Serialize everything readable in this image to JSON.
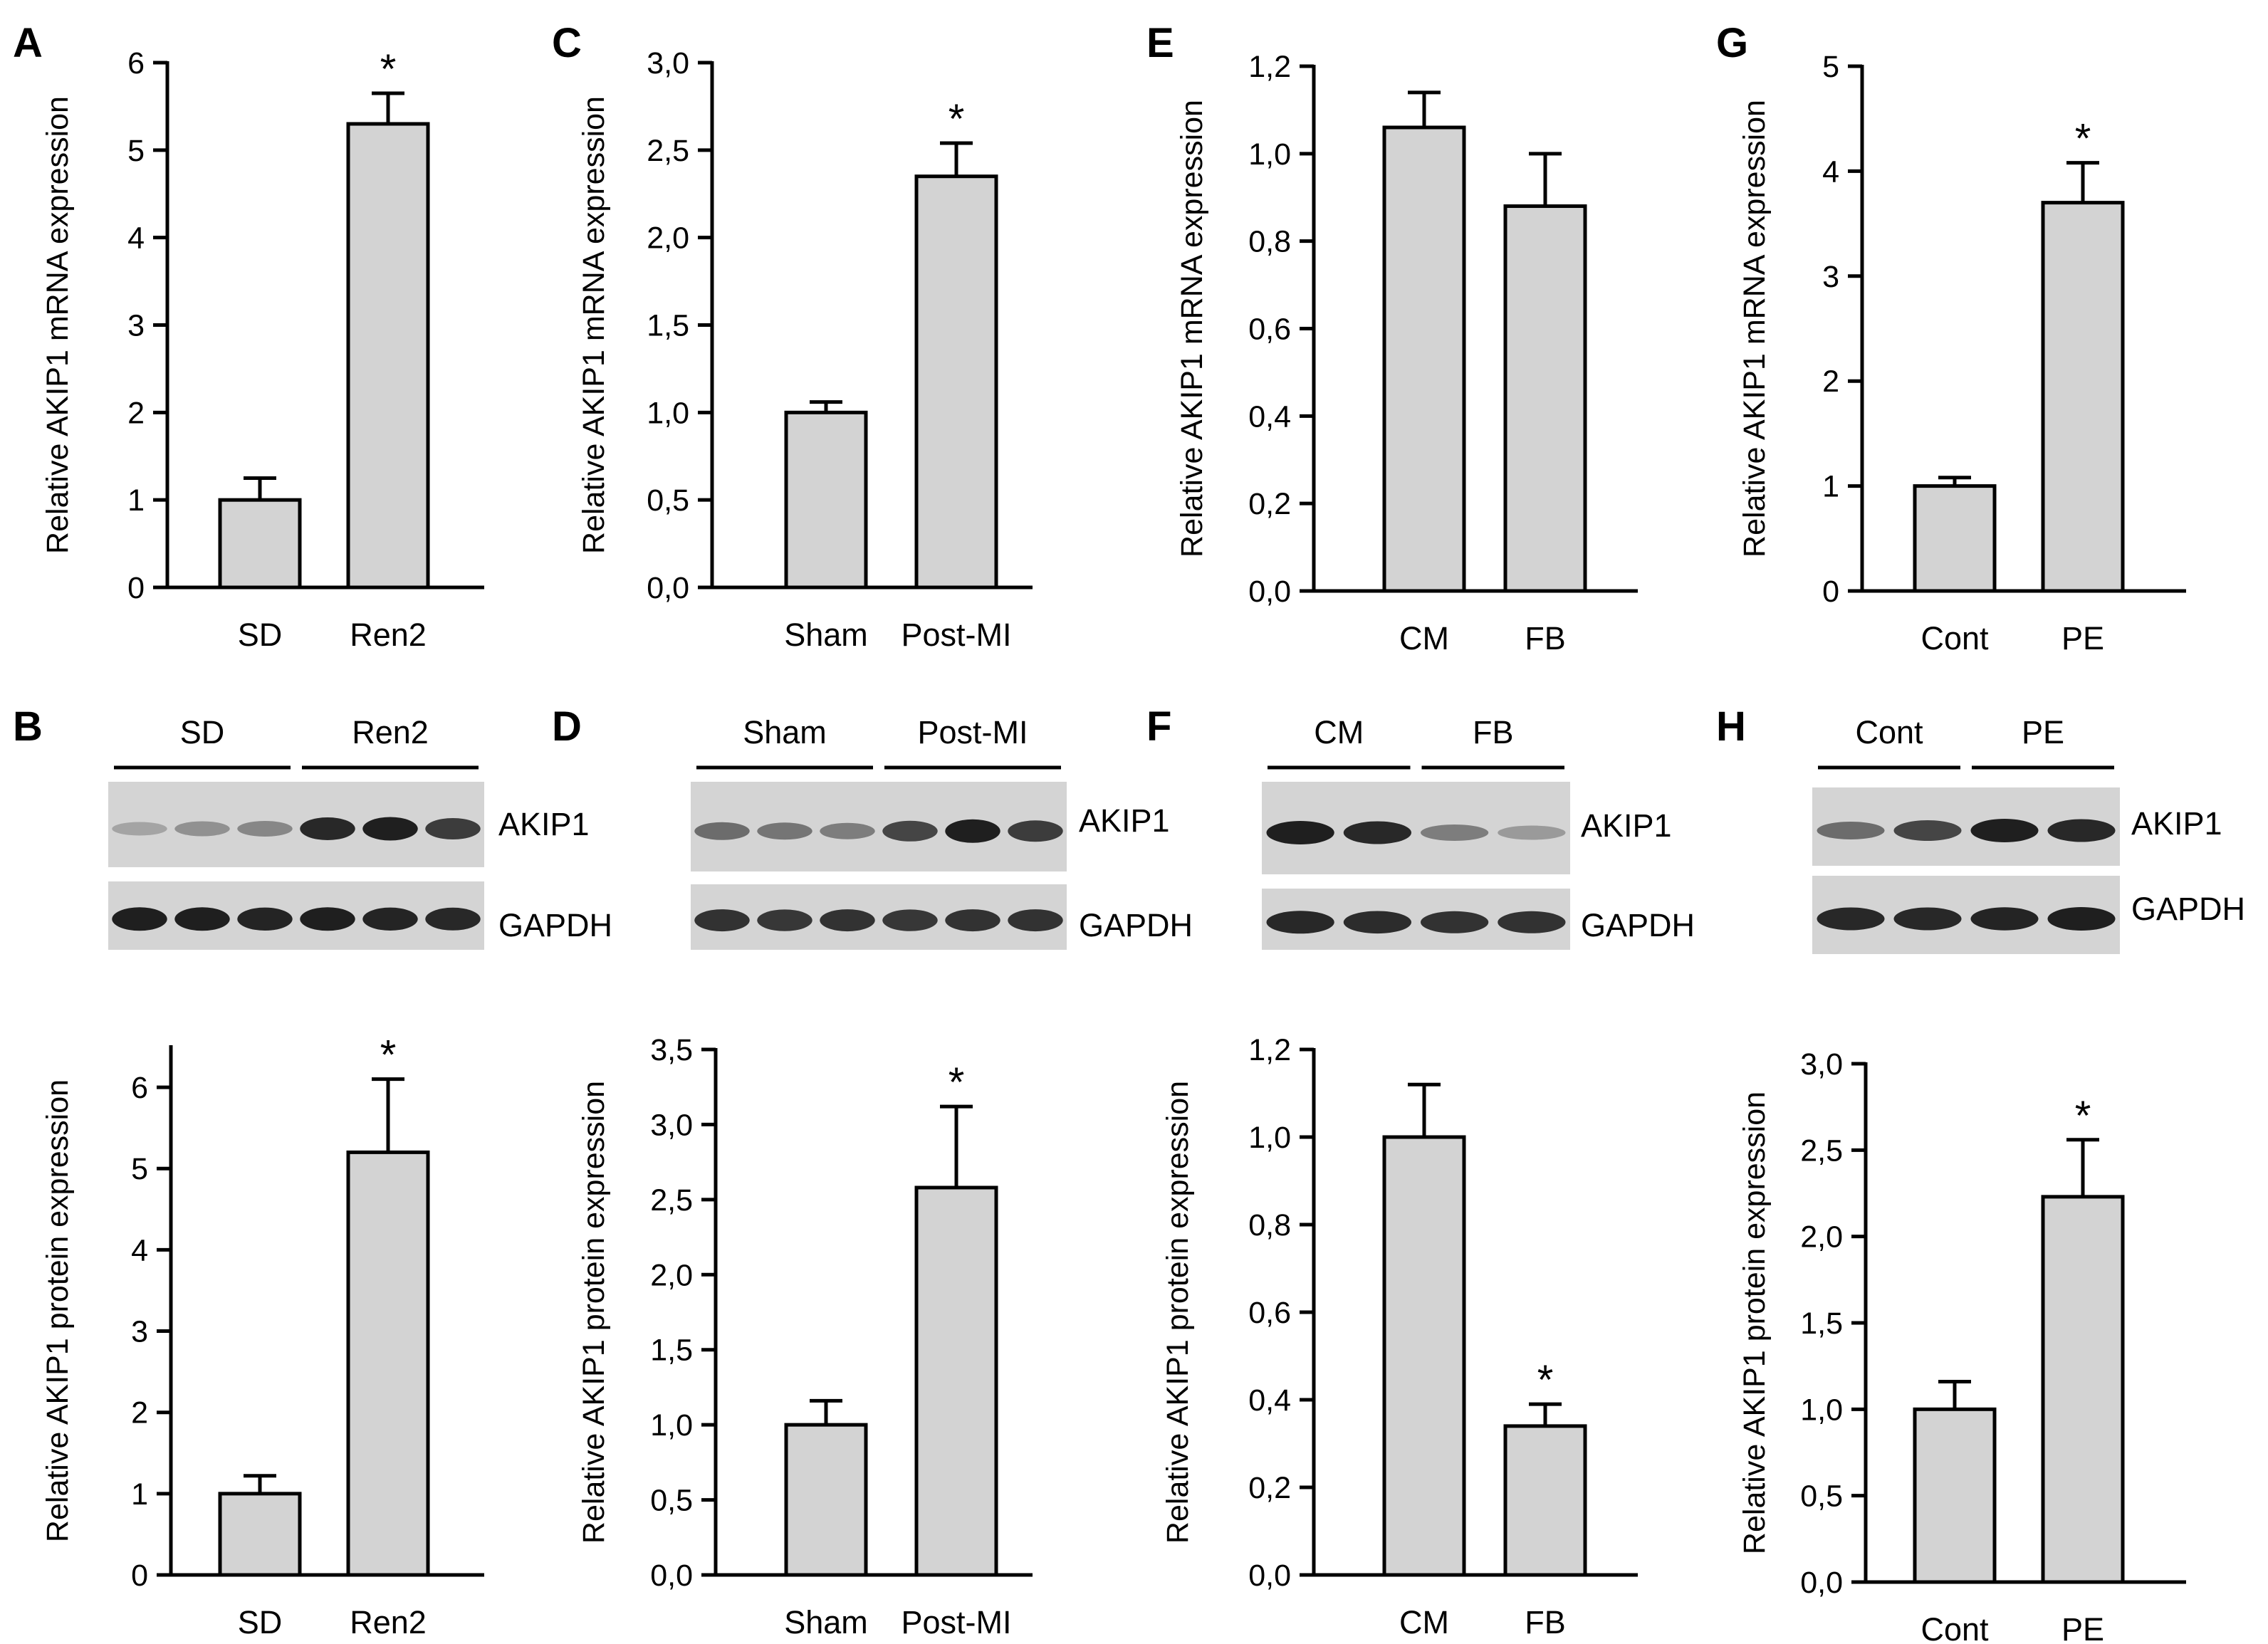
{
  "colors": {
    "bar_fill": "#d3d3d3",
    "axis": "#000000",
    "blot_background": "#d4d4d4",
    "band": "#151515"
  },
  "panel_letters": [
    "A",
    "B",
    "C",
    "D",
    "E",
    "F",
    "G",
    "H"
  ],
  "chart_data": [
    {
      "panel": "A",
      "type": "bar",
      "title": "",
      "xlabel": "",
      "ylabel": "Relative AKIP1 mRNA expression",
      "categories": [
        "SD",
        "Ren2"
      ],
      "values": [
        1.0,
        5.3
      ],
      "errors": [
        0.25,
        0.35
      ],
      "significance": [
        "",
        "*"
      ],
      "ylim": [
        0,
        6
      ],
      "yticks": [
        0,
        1,
        2,
        3,
        4,
        5,
        6
      ],
      "ytick_labels": [
        "0",
        "1",
        "2",
        "3",
        "4",
        "5",
        "6"
      ],
      "grid": false,
      "legend": "none"
    },
    {
      "panel": "C",
      "type": "bar",
      "title": "",
      "xlabel": "",
      "ylabel": "Relative AKIP1 mRNA expression",
      "categories": [
        "Sham",
        "Post-MI"
      ],
      "values": [
        1.0,
        2.35
      ],
      "errors": [
        0.06,
        0.19
      ],
      "significance": [
        "",
        "*"
      ],
      "ylim": [
        0,
        3
      ],
      "yticks": [
        0,
        0.5,
        1,
        1.5,
        2,
        2.5,
        3
      ],
      "ytick_labels": [
        "0,0",
        "0,5",
        "1,0",
        "1,5",
        "2,0",
        "2,5",
        "3,0"
      ],
      "grid": false,
      "legend": "none"
    },
    {
      "panel": "E",
      "type": "bar",
      "title": "",
      "xlabel": "",
      "ylabel": "Relative AKIP1 mRNA expression",
      "categories": [
        "CM",
        "FB"
      ],
      "values": [
        1.06,
        0.88
      ],
      "errors": [
        0.08,
        0.12
      ],
      "significance": [
        "",
        ""
      ],
      "ylim": [
        0,
        1.2
      ],
      "yticks": [
        0,
        0.2,
        0.4,
        0.6,
        0.8,
        1.0,
        1.2
      ],
      "ytick_labels": [
        "0,0",
        "0,2",
        "0,4",
        "0,6",
        "0,8",
        "1,0",
        "1,2"
      ],
      "grid": false,
      "legend": "none"
    },
    {
      "panel": "G",
      "type": "bar",
      "title": "",
      "xlabel": "",
      "ylabel": "Relative AKIP1 mRNA expression",
      "categories": [
        "Cont",
        "PE"
      ],
      "values": [
        1.0,
        3.7
      ],
      "errors": [
        0.08,
        0.38
      ],
      "significance": [
        "",
        "*"
      ],
      "ylim": [
        0,
        5
      ],
      "yticks": [
        0,
        1,
        2,
        3,
        4,
        5
      ],
      "ytick_labels": [
        "0",
        "1",
        "2",
        "3",
        "4",
        "5"
      ],
      "grid": false,
      "legend": "none"
    },
    {
      "panel": "B",
      "type": "bar",
      "title": "",
      "xlabel": "",
      "ylabel": "Relative AKIP1 protein expression",
      "categories": [
        "SD",
        "Ren2"
      ],
      "values": [
        1.0,
        5.2
      ],
      "errors": [
        0.22,
        0.9
      ],
      "significance": [
        "",
        "*"
      ],
      "ylim": [
        0,
        6.5
      ],
      "yticks": [
        0,
        1,
        2,
        3,
        4,
        5,
        6
      ],
      "ytick_labels": [
        "0",
        "1",
        "2",
        "3",
        "4",
        "5",
        "6"
      ],
      "grid": false,
      "legend": "none"
    },
    {
      "panel": "D",
      "type": "bar",
      "title": "",
      "xlabel": "",
      "ylabel": "Relative AKIP1 protein expression",
      "categories": [
        "Sham",
        "Post-MI"
      ],
      "values": [
        1.0,
        2.58
      ],
      "errors": [
        0.16,
        0.54
      ],
      "significance": [
        "",
        "*"
      ],
      "ylim": [
        0,
        3.5
      ],
      "yticks": [
        0,
        0.5,
        1,
        1.5,
        2,
        2.5,
        3,
        3.5
      ],
      "ytick_labels": [
        "0,0",
        "0,5",
        "1,0",
        "1,5",
        "2,0",
        "2,5",
        "3,0",
        "3,5"
      ],
      "grid": false,
      "legend": "none"
    },
    {
      "panel": "F",
      "type": "bar",
      "title": "",
      "xlabel": "",
      "ylabel": "Relative AKIP1 protein expression",
      "categories": [
        "CM",
        "FB"
      ],
      "values": [
        1.0,
        0.34
      ],
      "errors": [
        0.12,
        0.05
      ],
      "significance": [
        "",
        "*"
      ],
      "ylim": [
        0,
        1.2
      ],
      "yticks": [
        0,
        0.2,
        0.4,
        0.6,
        0.8,
        1.0,
        1.2
      ],
      "ytick_labels": [
        "0,0",
        "0,2",
        "0,4",
        "0,6",
        "0,8",
        "1,0",
        "1,2"
      ],
      "grid": false,
      "legend": "none"
    },
    {
      "panel": "H",
      "type": "bar",
      "title": "",
      "xlabel": "",
      "ylabel": "Relative AKIP1 protein expression",
      "categories": [
        "Cont",
        "PE"
      ],
      "values": [
        1.0,
        2.23
      ],
      "errors": [
        0.16,
        0.33
      ],
      "significance": [
        "",
        "*"
      ],
      "ylim": [
        0,
        3
      ],
      "yticks": [
        0,
        0.5,
        1,
        1.5,
        2,
        2.5,
        3
      ],
      "ytick_labels": [
        "0,0",
        "0,5",
        "1,0",
        "1,5",
        "2,0",
        "2,5",
        "3,0"
      ],
      "grid": false,
      "legend": "none"
    }
  ],
  "blots": [
    {
      "panel": "B",
      "groups": [
        "SD",
        "Ren2"
      ],
      "lanes_per_group": 3,
      "rows": [
        {
          "label": "AKIP1",
          "intensities": [
            0.25,
            0.35,
            0.4,
            0.9,
            0.95,
            0.8
          ]
        },
        {
          "label": "GAPDH",
          "intensities": [
            0.95,
            0.95,
            0.92,
            0.95,
            0.92,
            0.9
          ]
        }
      ]
    },
    {
      "panel": "D",
      "groups": [
        "Sham",
        "Post-MI"
      ],
      "lanes_per_group": 3,
      "rows": [
        {
          "label": "AKIP1",
          "intensities": [
            0.55,
            0.5,
            0.45,
            0.75,
            0.95,
            0.8
          ]
        },
        {
          "label": "GAPDH",
          "intensities": [
            0.85,
            0.82,
            0.85,
            0.82,
            0.85,
            0.85
          ]
        }
      ]
    },
    {
      "panel": "F",
      "groups": [
        "CM",
        "FB"
      ],
      "lanes_per_group": 2,
      "rows": [
        {
          "label": "AKIP1",
          "intensities": [
            0.95,
            0.9,
            0.45,
            0.3
          ]
        },
        {
          "label": "GAPDH",
          "intensities": [
            0.9,
            0.88,
            0.85,
            0.85
          ]
        }
      ]
    },
    {
      "panel": "H",
      "groups": [
        "Cont",
        "PE"
      ],
      "lanes_per_group": 2,
      "rows": [
        {
          "label": "AKIP1",
          "intensities": [
            0.55,
            0.75,
            0.95,
            0.9
          ]
        },
        {
          "label": "GAPDH",
          "intensities": [
            0.9,
            0.9,
            0.92,
            0.95
          ]
        }
      ]
    }
  ]
}
